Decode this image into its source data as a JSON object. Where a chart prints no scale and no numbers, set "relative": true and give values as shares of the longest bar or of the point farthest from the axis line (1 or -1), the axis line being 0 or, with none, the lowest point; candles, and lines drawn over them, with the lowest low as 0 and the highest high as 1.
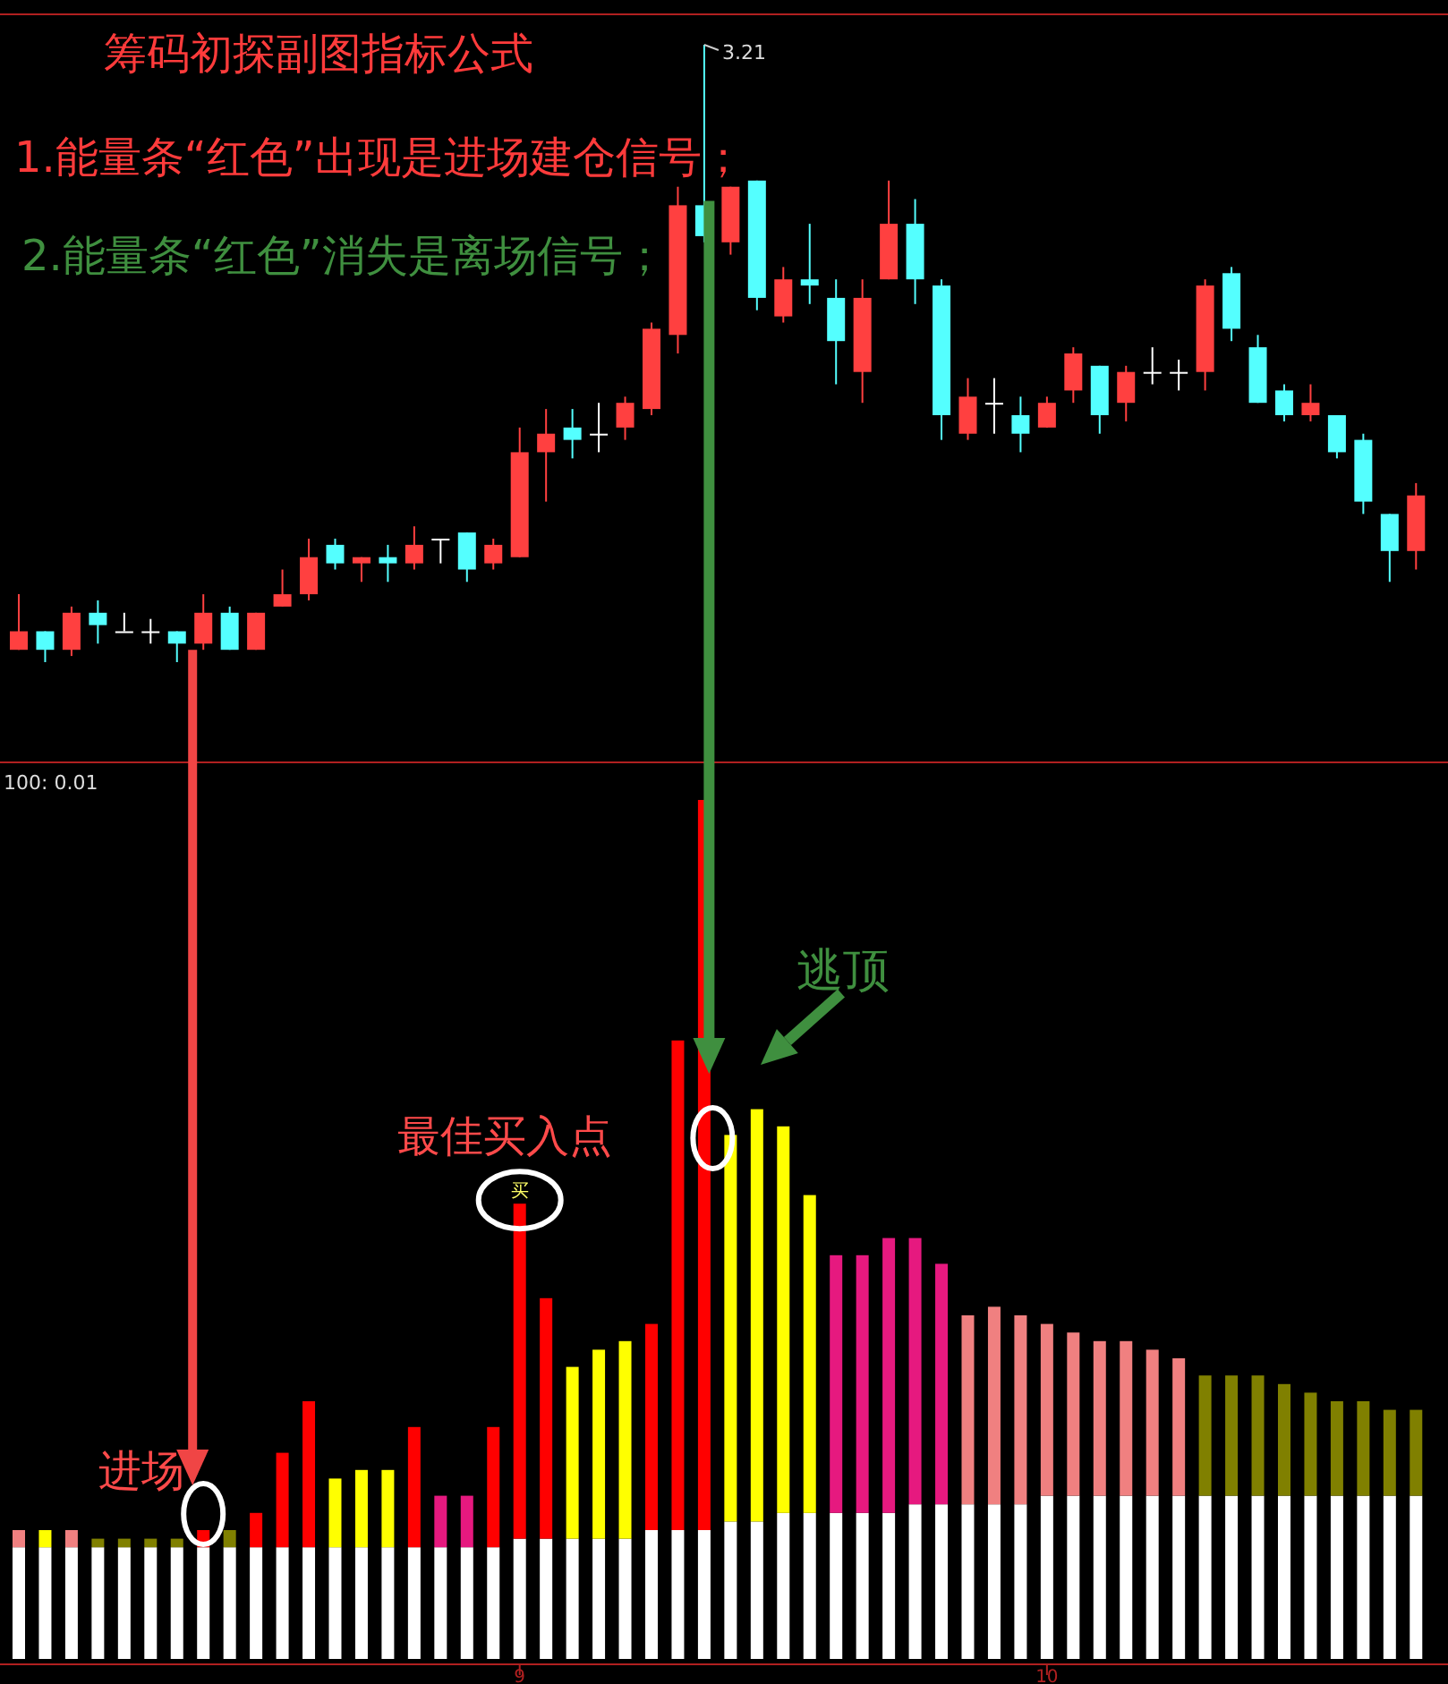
{
  "chart_data": [
    {
      "type": "candlestick",
      "relative": true,
      "title": "筹码初探副图指标公式",
      "tick_labels": false,
      "annotations": [
        "1.能量条“红色”出现是进场建仓信号；",
        "2.能量条“红色”消失是离场信号；",
        "3.21"
      ],
      "categories": [
        null,
        null,
        null,
        null,
        null,
        null,
        null,
        null,
        null,
        null,
        null,
        null,
        null,
        null,
        null,
        null,
        null,
        null,
        null,
        null,
        null,
        null,
        null,
        null,
        null,
        null,
        null,
        null,
        null,
        null,
        null,
        null,
        null,
        null,
        null,
        null,
        null,
        null,
        null,
        null,
        null,
        null,
        null,
        null,
        null,
        null,
        null,
        null,
        null,
        null,
        null,
        null,
        null,
        null
      ],
      "ohlc": [
        [
          0.02,
          0.11,
          0.02,
          0.05
        ],
        [
          0.05,
          0.05,
          0,
          0.02
        ],
        [
          0.02,
          0.09,
          0.01,
          0.08
        ],
        [
          0.08,
          0.1,
          0.03,
          0.06
        ],
        [
          0.05,
          0.08,
          0.05,
          0.05
        ],
        [
          0.05,
          0.07,
          0.03,
          0.05
        ],
        [
          0.05,
          0.05,
          0,
          0.03
        ],
        [
          0.03,
          0.11,
          0.02,
          0.08
        ],
        [
          0.08,
          0.09,
          0.02,
          0.02
        ],
        [
          0.02,
          0.08,
          0.02,
          0.08
        ],
        [
          0.09,
          0.15,
          0.09,
          0.11
        ],
        [
          0.11,
          0.2,
          0.1,
          0.17
        ],
        [
          0.19,
          0.2,
          0.15,
          0.16
        ],
        [
          0.16,
          0.17,
          0.13,
          0.17
        ],
        [
          0.17,
          0.19,
          0.13,
          0.16
        ],
        [
          0.16,
          0.22,
          0.15,
          0.19
        ],
        [
          0.2,
          0.2,
          0.16,
          0.2
        ],
        [
          0.21,
          0.21,
          0.13,
          0.15
        ],
        [
          0.16,
          0.2,
          0.15,
          0.19
        ],
        [
          0.17,
          0.38,
          0.17,
          0.34
        ],
        [
          0.34,
          0.41,
          0.26,
          0.37
        ],
        [
          0.38,
          0.41,
          0.33,
          0.36
        ],
        [
          0.37,
          0.42,
          0.34,
          0.37
        ],
        [
          0.38,
          0.43,
          0.36,
          0.42
        ],
        [
          0.41,
          0.55,
          0.4,
          0.54
        ],
        [
          0.53,
          0.77,
          0.5,
          0.74
        ],
        [
          0.74,
          1.0,
          0.68,
          0.69
        ],
        [
          0.68,
          0.77,
          0.66,
          0.77
        ],
        [
          0.78,
          0.78,
          0.57,
          0.59
        ],
        [
          0.56,
          0.64,
          0.55,
          0.62
        ],
        [
          0.62,
          0.71,
          0.58,
          0.61
        ],
        [
          0.59,
          0.62,
          0.45,
          0.52
        ],
        [
          0.47,
          0.62,
          0.42,
          0.59
        ],
        [
          0.62,
          0.78,
          0.62,
          0.71
        ],
        [
          0.71,
          0.75,
          0.58,
          0.62
        ],
        [
          0.61,
          0.62,
          0.36,
          0.4
        ],
        [
          0.37,
          0.46,
          0.36,
          0.43
        ],
        [
          0.42,
          0.46,
          0.37,
          0.42
        ],
        [
          0.4,
          0.43,
          0.34,
          0.37
        ],
        [
          0.38,
          0.43,
          0.38,
          0.42
        ],
        [
          0.44,
          0.51,
          0.42,
          0.5
        ],
        [
          0.48,
          0.48,
          0.37,
          0.4
        ],
        [
          0.42,
          0.48,
          0.39,
          0.47
        ],
        [
          0.47,
          0.51,
          0.45,
          0.47
        ],
        [
          0.47,
          0.49,
          0.44,
          0.47
        ],
        [
          0.47,
          0.62,
          0.44,
          0.61
        ],
        [
          0.63,
          0.64,
          0.52,
          0.54
        ],
        [
          0.51,
          0.53,
          0.42,
          0.42
        ],
        [
          0.44,
          0.45,
          0.39,
          0.4
        ],
        [
          0.4,
          0.45,
          0.39,
          0.42
        ],
        [
          0.4,
          0.4,
          0.33,
          0.34
        ],
        [
          0.36,
          0.37,
          0.24,
          0.26
        ],
        [
          0.24,
          0.24,
          0.13,
          0.18
        ],
        [
          0.18,
          0.29,
          0.15,
          0.27
        ]
      ]
    },
    {
      "type": "bar",
      "relative": true,
      "stacked": true,
      "tick_labels": "x",
      "annotations": [
        "100: 0.01",
        "进场",
        "最佳买入点",
        "逃顶",
        "买"
      ],
      "categories": [
        null,
        null,
        null,
        null,
        null,
        null,
        null,
        null,
        null,
        null,
        null,
        null,
        null,
        null,
        null,
        null,
        null,
        null,
        null,
        "9",
        null,
        null,
        null,
        null,
        null,
        null,
        null,
        null,
        null,
        null,
        null,
        null,
        null,
        null,
        null,
        null,
        null,
        null,
        null,
        "10",
        null,
        null,
        null,
        null,
        null,
        null,
        null,
        null,
        null,
        null,
        null,
        null,
        null,
        null
      ],
      "series": [
        {
          "color": "#ffffff",
          "values": [
            0.13,
            0.13,
            0.13,
            0.13,
            0.13,
            0.13,
            0.13,
            0.13,
            0.13,
            0.13,
            0.13,
            0.13,
            0.13,
            0.13,
            0.13,
            0.13,
            0.13,
            0.13,
            0.13,
            0.14,
            0.14,
            0.14,
            0.14,
            0.14,
            0.15,
            0.15,
            0.15,
            0.16,
            0.16,
            0.17,
            0.17,
            0.17,
            0.17,
            0.17,
            0.18,
            0.18,
            0.18,
            0.18,
            0.18,
            0.19,
            0.19,
            0.19,
            0.19,
            0.19,
            0.19,
            0.19,
            0.19,
            0.19,
            0.19,
            0.19,
            0.19,
            0.19,
            0.19,
            0.19
          ]
        },
        {
          "values": [
            0.02,
            0.02,
            0.02,
            0.01,
            0.01,
            0.01,
            0.01,
            0.02,
            0.02,
            0.04,
            0.11,
            0.17,
            0.08,
            0.09,
            0.09,
            0.14,
            0.06,
            0.06,
            0.14,
            0.39,
            0.28,
            0.2,
            0.22,
            0.23,
            0.24,
            0.57,
            0.85,
            0.45,
            0.48,
            0.45,
            0.37,
            0.3,
            0.3,
            0.32,
            0.31,
            0.28,
            0.22,
            0.23,
            0.22,
            0.2,
            0.19,
            0.18,
            0.18,
            0.17,
            0.16,
            0.14,
            0.14,
            0.14,
            0.13,
            0.12,
            0.11,
            0.11,
            0.1,
            0.1
          ],
          "colors": [
            "#f08080",
            "#ffff00",
            "#f08080",
            "#808000",
            "#808000",
            "#808000",
            "#808000",
            "#ff0000",
            "#808000",
            "#ff0000",
            "#ff0000",
            "#ff0000",
            "#ffff00",
            "#ffff00",
            "#ffff00",
            "#ff0000",
            "#e6197f",
            "#e6197f",
            "#ff0000",
            "#ff0000",
            "#ff0000",
            "#ffff00",
            "#ffff00",
            "#ffff00",
            "#ff0000",
            "#ff0000",
            "#ff0000",
            "#ffff00",
            "#ffff00",
            "#ffff00",
            "#ffff00",
            "#e6197f",
            "#e6197f",
            "#e6197f",
            "#e6197f",
            "#e6197f",
            "#f08080",
            "#f08080",
            "#f08080",
            "#f08080",
            "#f08080",
            "#f08080",
            "#f08080",
            "#f08080",
            "#f08080",
            "#808000",
            "#808000",
            "#808000",
            "#808000",
            "#808000",
            "#808000",
            "#808000",
            "#808000",
            "#808000"
          ]
        }
      ]
    }
  ]
}
